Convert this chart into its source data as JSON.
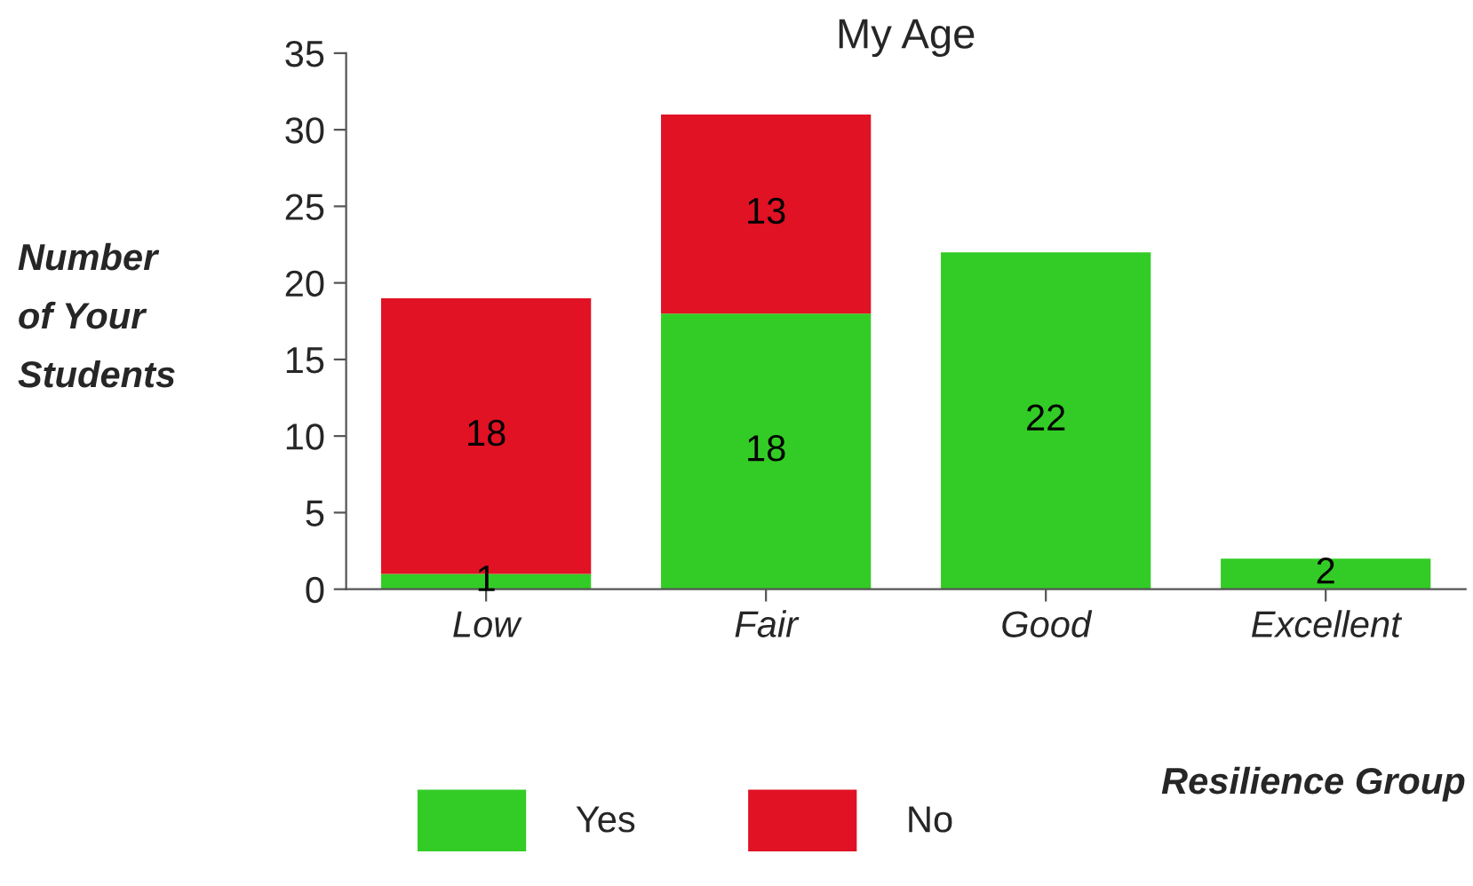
{
  "chart_data": {
    "type": "bar",
    "title": "My Age",
    "xlabel": "Resilience Group",
    "ylabel": "Number of Your Students",
    "categories": [
      "Low",
      "Fair",
      "Good",
      "Excellent"
    ],
    "series": [
      {
        "name": "Yes",
        "color": "#33cc26",
        "values": [
          1,
          18,
          22,
          2
        ]
      },
      {
        "name": "No",
        "color": "#e01224",
        "values": [
          18,
          13,
          null,
          null
        ]
      }
    ],
    "stacked": true,
    "data_labels": true,
    "ylim": [
      0,
      35
    ],
    "yticks": [
      0,
      5,
      10,
      15,
      20,
      25,
      30,
      35
    ],
    "grid": false,
    "legend": "bottom"
  }
}
